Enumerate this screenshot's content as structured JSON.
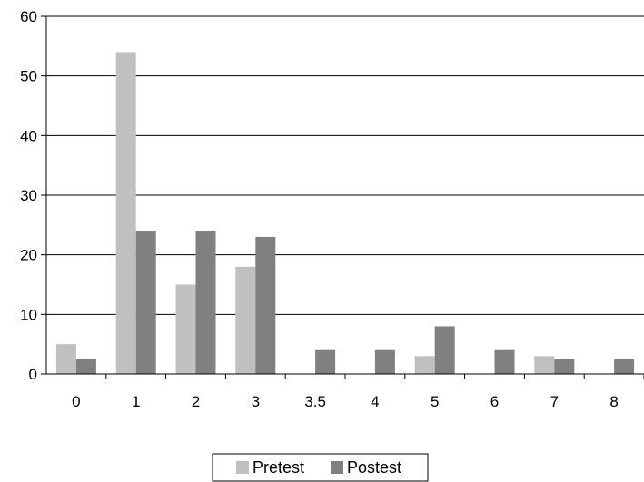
{
  "chart_data": {
    "type": "bar",
    "title": "",
    "xlabel": "",
    "ylabel": "",
    "categories": [
      "0",
      "1",
      "2",
      "3",
      "3.5",
      "4",
      "5",
      "6",
      "7",
      "8"
    ],
    "series": [
      {
        "name": "Pretest",
        "color": "#c0c0c0",
        "values": [
          5,
          54,
          15,
          18,
          0,
          0,
          3,
          0,
          3,
          0
        ]
      },
      {
        "name": "Postest",
        "color": "#808080",
        "values": [
          2.5,
          24,
          24,
          23,
          4,
          4,
          8,
          4,
          2.5,
          2.5
        ]
      }
    ],
    "ylim": [
      0,
      60
    ],
    "yticks": [
      "0",
      "10",
      "20",
      "30",
      "40",
      "50",
      "60"
    ],
    "grid": true,
    "legend_position": "bottom-center"
  }
}
